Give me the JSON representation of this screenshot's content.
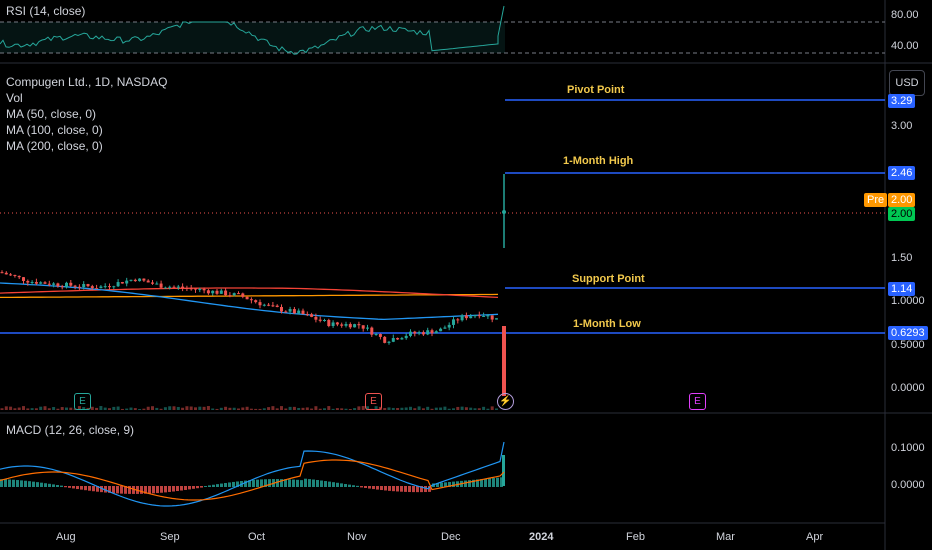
{
  "rsi_panel": {
    "title": "RSI (14, close)",
    "levels": [
      "80.00",
      "40.00"
    ]
  },
  "main_panel": {
    "title": "Compugen Ltd., 1D, NASDAQ",
    "indicators": [
      "Vol",
      "MA (50, close, 0)",
      "MA (100, close, 0)",
      "MA (200, close, 0)"
    ],
    "currency_button": "USD",
    "y_ticks": [
      "3.00",
      "1.50",
      "1.0000",
      "0.5000",
      "0.0000"
    ],
    "price_tags": {
      "pivot": "3.29",
      "high": "2.46",
      "pre_label": "Pre",
      "pre_value": "2.00",
      "last": "2.00",
      "support": "1.14",
      "low": "0.6293"
    },
    "levels": [
      {
        "name": "Pivot Point",
        "value": 3.29
      },
      {
        "name": "1-Month High",
        "value": 2.46
      },
      {
        "name": "Support Point",
        "value": 1.14
      },
      {
        "name": "1-Month Low",
        "value": 0.6293
      }
    ],
    "earnings_markers": [
      {
        "letter": "E",
        "color": "#26a69a",
        "date": "late Jul"
      },
      {
        "letter": "E",
        "color": "#ef5350",
        "date": "early Nov"
      },
      {
        "letter": "⚡",
        "color": "#b39ddb",
        "date": "mid Dec"
      },
      {
        "letter": "E",
        "color": "#e040fb",
        "date": "late Feb"
      }
    ]
  },
  "macd_panel": {
    "title": "MACD (12, 26, close, 9)",
    "y_ticks": [
      "0.1000",
      "0.0000"
    ]
  },
  "x_axis": [
    "Aug",
    "Sep",
    "Oct",
    "Nov",
    "Dec",
    "2024",
    "Feb",
    "Mar",
    "Apr"
  ],
  "colors": {
    "up": "#26a69a",
    "down": "#ef5350",
    "level_line": "#2962ff",
    "level_text": "#f2c94c",
    "ma50": "#2196f3",
    "ma100": "#f44336",
    "ma200": "#ff9800",
    "rsi_line": "#26a69a",
    "macd_line": "#2196f3",
    "signal_line": "#ff6d00",
    "pre_tag": "#ff9800",
    "last_tag": "#00c853"
  },
  "chart_data": {
    "type": "line",
    "x": [
      "2023-07-20",
      "2023-08-01",
      "2023-08-15",
      "2023-09-01",
      "2023-09-15",
      "2023-10-01",
      "2023-10-15",
      "2023-11-01",
      "2023-11-10",
      "2023-11-20",
      "2023-12-01",
      "2023-12-10",
      "2023-12-14",
      "2023-12-15"
    ],
    "series": [
      {
        "name": "close",
        "values": [
          1.35,
          1.18,
          1.15,
          1.22,
          1.12,
          1.06,
          0.88,
          0.72,
          0.55,
          0.6,
          0.68,
          0.82,
          0.78,
          2.0
        ]
      }
    ],
    "ylim": [
      0,
      3.6
    ],
    "levels": {
      "Pivot Point": 3.29,
      "1-Month High": 2.46,
      "Support Point": 1.14,
      "1-Month Low": 0.6293
    }
  }
}
